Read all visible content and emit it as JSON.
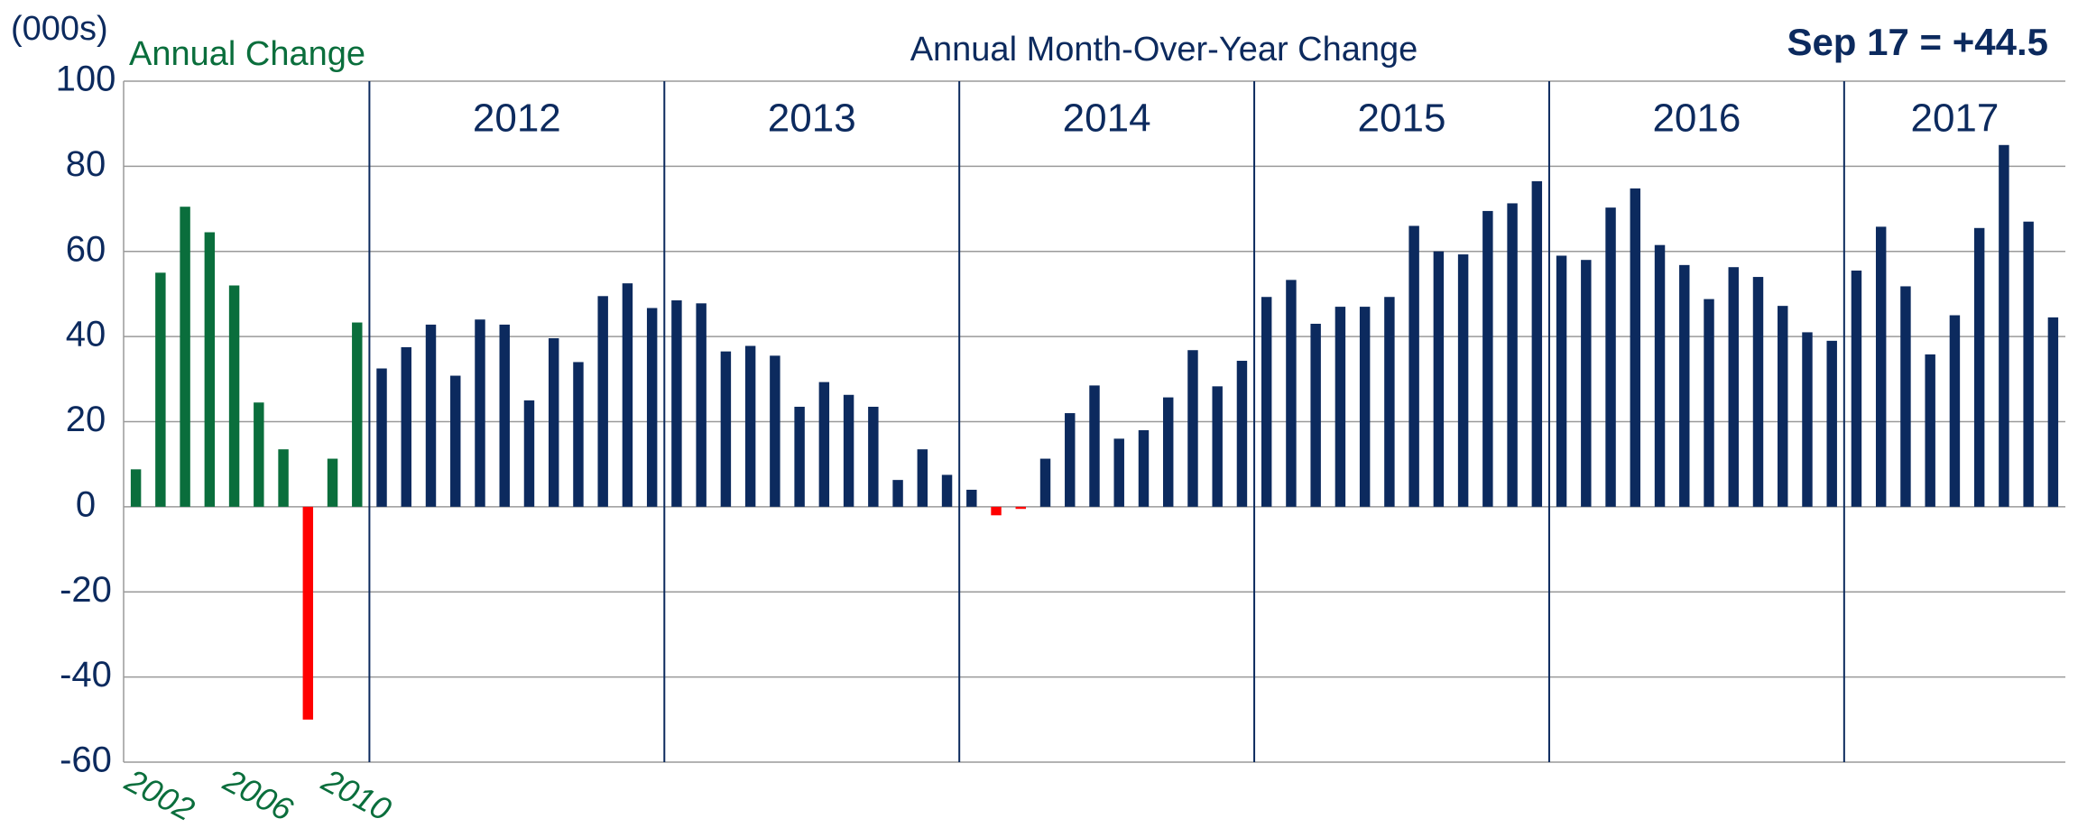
{
  "chart_data": {
    "type": "bar",
    "title": "Annual Month-Over-Year Change",
    "annotation": "Sep 17 = +44.5",
    "ylabel": "(000s)",
    "categories": [
      "2002",
      null,
      null,
      null,
      "2006",
      null,
      null,
      null,
      "2010",
      null,
      null,
      null,
      null,
      null,
      null,
      null,
      null,
      null,
      null,
      null,
      null,
      null,
      null,
      null,
      null,
      null,
      null,
      null,
      null,
      null,
      null,
      null,
      null,
      null,
      null,
      null,
      null,
      null,
      null,
      null,
      null,
      null,
      null,
      null,
      null,
      null,
      null,
      null,
      null,
      null,
      null,
      null,
      null,
      null,
      null,
      null,
      null,
      null,
      null,
      null,
      null,
      null,
      null,
      null,
      null,
      null,
      null,
      null,
      null,
      null,
      null,
      null,
      null,
      null,
      null,
      null,
      null,
      null,
      null
    ],
    "series": [
      {
        "name": "Annual Change",
        "color": "#0a6e3c",
        "values": [
          8.8,
          55,
          70.5,
          64.5,
          52,
          24.5,
          13.5,
          -50,
          11.3,
          43.3,
          null,
          null,
          null,
          null,
          null,
          null,
          null,
          null,
          null,
          null,
          null,
          null,
          null,
          null,
          null,
          null,
          null,
          null,
          null,
          null,
          null,
          null,
          null,
          null,
          null,
          null,
          null,
          null,
          null,
          null,
          null,
          null,
          null,
          null,
          null,
          null,
          null,
          null,
          null,
          null,
          null,
          null,
          null,
          null,
          null,
          null,
          null,
          null,
          null,
          null,
          null,
          null,
          null,
          null,
          null,
          null,
          null,
          null,
          null,
          null,
          null,
          null,
          null,
          null,
          null,
          null,
          null,
          null,
          null
        ]
      },
      {
        "color": "#0c2a5e",
        "values": [
          null,
          null,
          null,
          null,
          null,
          null,
          null,
          null,
          null,
          null,
          32.5,
          37.5,
          42.8,
          30.8,
          44,
          42.8,
          25,
          39.6,
          34,
          49.5,
          52.5,
          46.7,
          48.5,
          47.8,
          36.5,
          37.8,
          35.5,
          23.5,
          29.3,
          26.3,
          23.5,
          6.3,
          13.5,
          7.5,
          4,
          -2,
          -0.5,
          11.3,
          22,
          28.5,
          16,
          18,
          25.7,
          36.8,
          28.3,
          34.3,
          49.3,
          53.3,
          43,
          47,
          47,
          49.3,
          66,
          60,
          59.3,
          69.5,
          71.3,
          76.5,
          59,
          58,
          70.3,
          74.8,
          61.5,
          56.8,
          48.8,
          56.3,
          54,
          47.2,
          41,
          39,
          55.5,
          65.8,
          51.8,
          35.8,
          45,
          65.5,
          85,
          67,
          44.5
        ]
      }
    ],
    "negative_color": "#ff0000",
    "periods": [
      {
        "label": "2012",
        "start": 10
      },
      {
        "label": "2013",
        "start": 22
      },
      {
        "label": "2014",
        "start": 34
      },
      {
        "label": "2015",
        "start": 46
      },
      {
        "label": "2016",
        "start": 58
      },
      {
        "label": "2017",
        "start": 70
      }
    ],
    "ylim": [
      -60,
      100
    ],
    "yticks": [
      -60,
      -40,
      -20,
      0,
      20,
      40,
      60,
      80,
      100
    ],
    "grid": true
  }
}
